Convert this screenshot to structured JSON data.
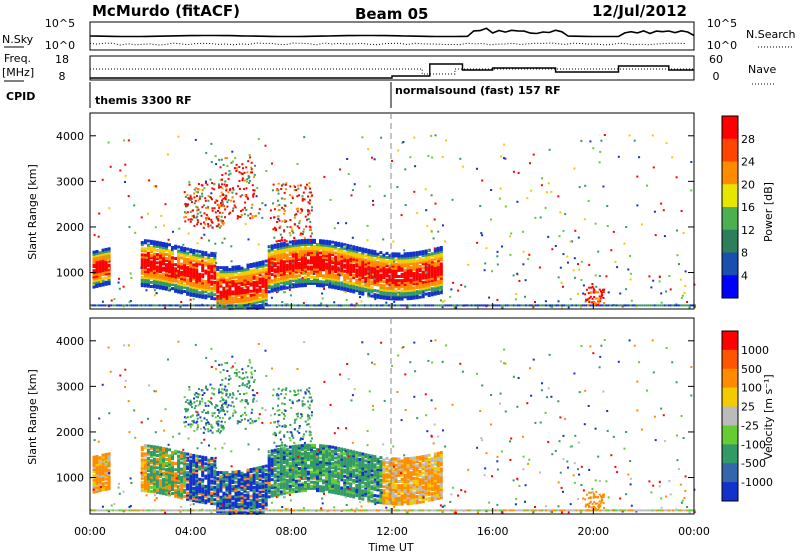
{
  "header": {
    "station": "McMurdo (fitACF)",
    "beam": "Beam 05",
    "date": "12/Jul/2012"
  },
  "status_panel": {
    "left_top_label": "N.Sky",
    "left_top_ticks": [
      "10^5",
      "10^0"
    ],
    "right_top_label": "N.Search",
    "right_top_ticks": [
      "10^5",
      "10^0"
    ],
    "left_mid_label_1": "Freq.",
    "left_mid_label_2": "[MHz]",
    "left_mid_ticks": [
      "18",
      "8"
    ],
    "right_mid_label": "Nave",
    "right_mid_ticks": [
      "60",
      "0"
    ],
    "cpid_label": "CPID",
    "cpid_1": "themis 3300 RF",
    "cpid_2": "normalsound (fast) 157 RF"
  },
  "colors": {
    "red": "#ff0000",
    "orange": "#ff8c00",
    "yellow": "#f2cc00",
    "lightgreen": "#66cc33",
    "teal": "#339966",
    "blue": "#1133cc",
    "darkblue": "#0000cc",
    "gray": "#bbbbbb"
  },
  "chart_data": [
    {
      "type": "heatmap",
      "name": "power",
      "ylabel": "Slant Range [km]",
      "yticks": [
        "1000",
        "2000",
        "3000",
        "4000"
      ],
      "ylim": [
        200,
        4500
      ],
      "xlim": [
        0,
        24
      ],
      "colorbar": {
        "label": "Power [dB]",
        "ticks": [
          "4",
          "8",
          "12",
          "16",
          "20",
          "24",
          "28"
        ],
        "colors": [
          "#0000ff",
          "#1a4fb0",
          "#2e7d5b",
          "#4caf50",
          "#e6e600",
          "#ff8c00",
          "#ff4500",
          "#ff0000"
        ]
      }
    },
    {
      "type": "heatmap",
      "name": "velocity",
      "ylabel": "Slant Range [km]",
      "yticks": [
        "1000",
        "2000",
        "3000",
        "4000"
      ],
      "ylim": [
        200,
        4500
      ],
      "xlim": [
        0,
        24
      ],
      "xlabel": "Time UT",
      "xticks": [
        "00:00",
        "04:00",
        "08:00",
        "12:00",
        "16:00",
        "20:00",
        "00:00"
      ],
      "colorbar": {
        "label": "Velocity [m s⁻¹]",
        "ticks": [
          "1000",
          "500",
          "100",
          "25",
          "-25",
          "-100",
          "-500",
          "-1000"
        ],
        "colors": [
          "#1133cc",
          "#3366aa",
          "#339966",
          "#66cc33",
          "#bbbbbb",
          "#f2cc00",
          "#ff8c00",
          "#ff5500",
          "#ff0000"
        ]
      }
    }
  ]
}
